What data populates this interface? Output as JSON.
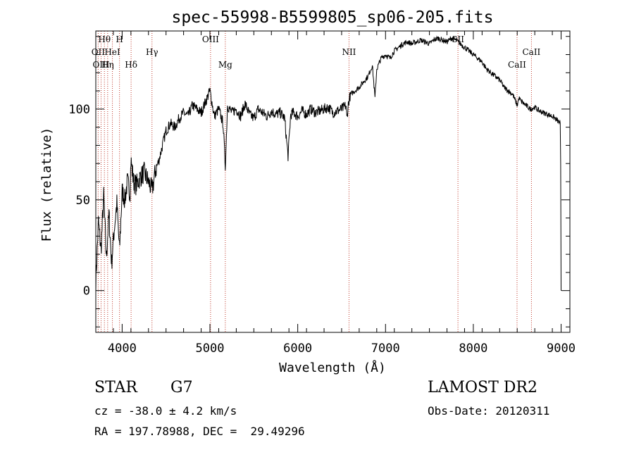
{
  "chart_data": {
    "type": "line",
    "title": "spec-55998-B5599805_sp06-205.fits",
    "xlabel": "Wavelength (Å)",
    "ylabel": "Flux (relative)",
    "xlim": [
      3700,
      9100
    ],
    "ylim": [
      -23,
      143
    ],
    "x_ticks": [
      4000,
      5000,
      6000,
      7000,
      8000,
      9000
    ],
    "y_ticks": [
      0,
      50,
      100
    ],
    "lines": [
      {
        "label": "Hθ",
        "x": 3798,
        "row": 0
      },
      {
        "label": "H",
        "x": 3970,
        "row": 0
      },
      {
        "label": "OII",
        "x": 3727,
        "row": 1
      },
      {
        "label": "HeI",
        "x": 3889,
        "row": 1
      },
      {
        "label": "Hγ",
        "x": 4340,
        "row": 1
      },
      {
        "label": "OIII",
        "x": 5007,
        "row": 0
      },
      {
        "label": "NII",
        "x": 6584,
        "row": 1
      },
      {
        "label": "SII",
        "x": 7825,
        "row": 0
      },
      {
        "label": "CaII",
        "x": 8662,
        "row": 1
      },
      {
        "label": "OIII",
        "x": 3760,
        "row": 2
      },
      {
        "label": "Hη",
        "x": 3835,
        "row": 2
      },
      {
        "label": "Hδ",
        "x": 4102,
        "row": 2
      },
      {
        "label": "Mg",
        "x": 5175,
        "row": 2
      },
      {
        "label": "CaII",
        "x": 8498,
        "row": 2
      }
    ],
    "series": [
      {
        "name": "flux",
        "x": [
          3700,
          3730,
          3760,
          3790,
          3820,
          3850,
          3880,
          3910,
          3940,
          3970,
          4000,
          4030,
          4060,
          4090,
          4100,
          4130,
          4160,
          4200,
          4250,
          4300,
          4340,
          4380,
          4420,
          4460,
          4500,
          4550,
          4600,
          4650,
          4700,
          4750,
          4800,
          4850,
          4900,
          4950,
          5000,
          5050,
          5100,
          5150,
          5175,
          5200,
          5250,
          5300,
          5350,
          5400,
          5450,
          5500,
          5550,
          5600,
          5650,
          5700,
          5750,
          5800,
          5850,
          5890,
          5920,
          5950,
          6000,
          6050,
          6100,
          6150,
          6200,
          6250,
          6300,
          6350,
          6400,
          6450,
          6500,
          6550,
          6560,
          6580,
          6600,
          6650,
          6700,
          6750,
          6800,
          6850,
          6880,
          6900,
          6950,
          7000,
          7050,
          7100,
          7150,
          7200,
          7250,
          7300,
          7350,
          7400,
          7450,
          7500,
          7550,
          7600,
          7650,
          7700,
          7750,
          7800,
          7850,
          7900,
          7950,
          8000,
          8050,
          8100,
          8150,
          8200,
          8250,
          8300,
          8350,
          8400,
          8450,
          8500,
          8520,
          8550,
          8600,
          8650,
          8700,
          8750,
          8800,
          8850,
          8900,
          8950,
          8990,
          8995,
          9000
        ],
        "values": [
          5,
          38,
          22,
          52,
          18,
          42,
          15,
          34,
          48,
          22,
          55,
          50,
          60,
          54,
          72,
          60,
          58,
          62,
          65,
          60,
          55,
          66,
          72,
          80,
          88,
          92,
          90,
          95,
          98,
          96,
          102,
          100,
          98,
          104,
          110,
          96,
          100,
          92,
          68,
          102,
          98,
          100,
          96,
          103,
          97,
          95,
          100,
          98,
          96,
          99,
          97,
          98,
          95,
          74,
          97,
          98,
          96,
          99,
          97,
          100,
          98,
          99,
          100,
          101,
          98,
          99,
          100,
          102,
          95,
          104,
          108,
          110,
          112,
          115,
          118,
          124,
          106,
          122,
          128,
          130,
          128,
          132,
          134,
          136,
          137,
          136,
          137,
          138,
          137,
          136,
          138,
          139,
          138,
          137,
          139,
          138,
          136,
          134,
          132,
          130,
          128,
          126,
          122,
          120,
          118,
          116,
          112,
          110,
          108,
          102,
          106,
          104,
          102,
          100,
          101,
          99,
          98,
          97,
          96,
          94,
          92,
          70,
          0
        ]
      }
    ]
  },
  "info": {
    "object_class": "STAR",
    "subclass": "G7",
    "survey": "LAMOST DR2",
    "cz": "cz = -38.0 ± 4.2 km/s",
    "obs_date": "Obs-Date: 20120311",
    "radec": "RA = 197.78988, DEC =  29.49296"
  }
}
